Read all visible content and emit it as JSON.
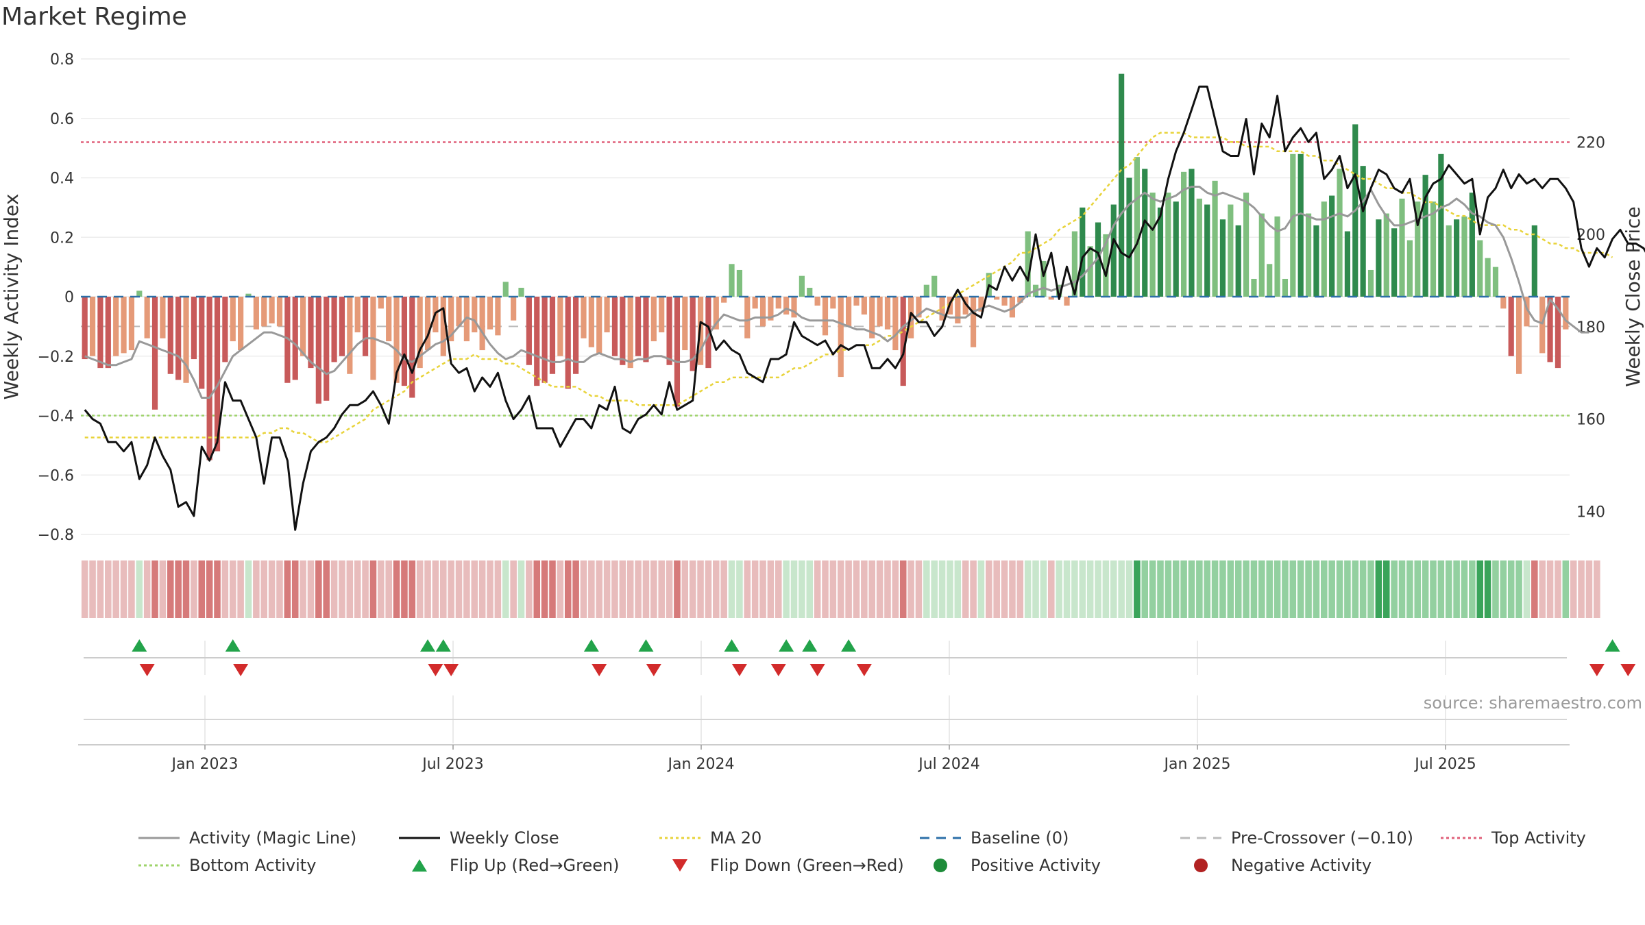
{
  "title": "Market Regime",
  "source": "source: sharemaestro.com",
  "colors": {
    "strong_pos": "#2f8a4d",
    "light_pos": "#7fbf7f",
    "strong_neg": "#c85a5a",
    "light_neg": "#e59a78",
    "magic_line": "#999999",
    "close": "#111111",
    "ma20": "#e8d33a",
    "baseline": "#2c6fa8",
    "pre_crossover": "#bbbbbb",
    "top": "#e0607a",
    "bottom": "#9ed36a",
    "flip_up": "#22a34a",
    "flip_down": "#d22b2b"
  },
  "legend": [
    {
      "label": "Activity (Magic Line)",
      "kind": "line",
      "color": "#999999",
      "dash": ""
    },
    {
      "label": "Weekly Close",
      "kind": "line",
      "color": "#111111",
      "dash": ""
    },
    {
      "label": "MA 20",
      "kind": "line",
      "color": "#e8d33a",
      "dash": "4,4"
    },
    {
      "label": "Baseline (0)",
      "kind": "line",
      "color": "#2c6fa8",
      "dash": "14,10"
    },
    {
      "label": "Pre-Crossover (−0.10)",
      "kind": "line",
      "color": "#bbbbbb",
      "dash": "14,10"
    },
    {
      "label": "Top Activity",
      "kind": "line",
      "color": "#e0607a",
      "dash": "4,4"
    },
    {
      "label": "Bottom Activity",
      "kind": "line",
      "color": "#9ed36a",
      "dash": "4,4"
    },
    {
      "label": "Flip Up (Red→Green)",
      "kind": "tri-up",
      "color": "#22a34a",
      "dash": ""
    },
    {
      "label": "Flip Down (Green→Red)",
      "kind": "tri-down",
      "color": "#d22b2b",
      "dash": ""
    },
    {
      "label": "Positive Activity",
      "kind": "dot",
      "color": "#1e8c3a",
      "dash": ""
    },
    {
      "label": "Negative Activity",
      "kind": "dot",
      "color": "#b22222",
      "dash": ""
    }
  ],
  "chart_data": {
    "type": "bar",
    "x_axis": {
      "ticks": [
        "Jan 2023",
        "Jul 2023",
        "Jan 2024",
        "Jul 2024",
        "Jan 2025",
        "Jul 2025"
      ],
      "range": [
        "2022-10",
        "2025-09"
      ]
    },
    "y_left": {
      "label": "Weekly Activity Index",
      "ticks": [
        "−0.8",
        "−0.6",
        "−0.4",
        "−0.2",
        "0",
        "0.2",
        "0.4",
        "0.6",
        "0.8"
      ],
      "ylim": [
        -0.8,
        0.8
      ]
    },
    "y_right": {
      "label": "Weekly Close Price",
      "ticks": [
        "140",
        "160",
        "180",
        "200",
        "220"
      ],
      "ylim": [
        135,
        238
      ]
    },
    "reference_lines": {
      "baseline": 0,
      "pre_crossover": -0.1,
      "top_activity": 0.52,
      "bottom_activity": -0.4
    },
    "series": [
      {
        "name": "Weekly Activity Index (bars)",
        "kind": "bar",
        "values": [
          -0.21,
          -0.2,
          -0.24,
          -0.24,
          -0.2,
          -0.19,
          -0.18,
          0.02,
          -0.14,
          -0.38,
          -0.14,
          -0.26,
          -0.28,
          -0.29,
          -0.21,
          -0.31,
          -0.55,
          -0.52,
          -0.22,
          -0.15,
          -0.18,
          0.01,
          -0.11,
          -0.1,
          -0.09,
          -0.1,
          -0.29,
          -0.28,
          -0.2,
          -0.24,
          -0.36,
          -0.35,
          -0.22,
          -0.2,
          -0.26,
          -0.12,
          -0.2,
          -0.28,
          -0.04,
          -0.15,
          -0.29,
          -0.3,
          -0.34,
          -0.24,
          -0.18,
          -0.12,
          -0.2,
          -0.15,
          -0.1,
          -0.15,
          -0.12,
          -0.18,
          -0.11,
          -0.13,
          0.05,
          -0.08,
          0.03,
          -0.23,
          -0.3,
          -0.29,
          -0.26,
          -0.2,
          -0.31,
          -0.26,
          -0.14,
          -0.17,
          -0.19,
          -0.12,
          -0.2,
          -0.23,
          -0.24,
          -0.2,
          -0.22,
          -0.15,
          -0.12,
          -0.23,
          -0.37,
          -0.18,
          -0.25,
          -0.23,
          -0.24,
          -0.11,
          -0.02,
          0.11,
          0.09,
          -0.14,
          -0.04,
          -0.1,
          -0.08,
          -0.04,
          -0.06,
          -0.07,
          0.07,
          0.03,
          -0.03,
          -0.13,
          -0.04,
          -0.27,
          -0.1,
          -0.03,
          -0.06,
          -0.14,
          -0.1,
          -0.11,
          -0.18,
          -0.3,
          -0.14,
          -0.07,
          0.04,
          0.07,
          -0.08,
          -0.06,
          -0.09,
          -0.06,
          -0.17,
          -0.05,
          0.08,
          -0.01,
          -0.03,
          -0.07,
          -0.02,
          0.22,
          0.04,
          0.12,
          -0.01,
          0.04,
          -0.03,
          0.22,
          0.3,
          0.17,
          0.25,
          0.21,
          0.31,
          0.75,
          0.4,
          0.47,
          0.43,
          0.35,
          0.3,
          0.35,
          0.32,
          0.42,
          0.43,
          0.33,
          0.31,
          0.39,
          0.26,
          0.31,
          0.24,
          0.35,
          0.06,
          0.28,
          0.11,
          0.27,
          0.06,
          0.48,
          0.48,
          0.28,
          0.24,
          0.32,
          0.34,
          0.43,
          0.22,
          0.58,
          0.44,
          0.09,
          0.26,
          0.28,
          0.23,
          0.33,
          0.19,
          0.32,
          0.41,
          0.32,
          0.48,
          0.24,
          0.26,
          0.27,
          0.35,
          0.19,
          0.13,
          0.1,
          -0.04,
          -0.2,
          -0.26,
          -0.1,
          0.24,
          -0.19,
          -0.22,
          -0.24,
          -0.11
        ]
      },
      {
        "name": "Activity (Magic Line)",
        "kind": "line",
        "values": [
          -0.2,
          -0.21,
          -0.22,
          -0.23,
          -0.23,
          -0.22,
          -0.21,
          -0.15,
          -0.16,
          -0.17,
          -0.18,
          -0.19,
          -0.2,
          -0.23,
          -0.28,
          -0.34,
          -0.34,
          -0.3,
          -0.25,
          -0.2,
          -0.18,
          -0.16,
          -0.14,
          -0.12,
          -0.12,
          -0.13,
          -0.14,
          -0.16,
          -0.19,
          -0.22,
          -0.24,
          -0.26,
          -0.25,
          -0.22,
          -0.19,
          -0.16,
          -0.14,
          -0.14,
          -0.15,
          -0.16,
          -0.18,
          -0.21,
          -0.22,
          -0.2,
          -0.18,
          -0.16,
          -0.15,
          -0.13,
          -0.1,
          -0.07,
          -0.08,
          -0.12,
          -0.16,
          -0.19,
          -0.21,
          -0.2,
          -0.18,
          -0.19,
          -0.2,
          -0.21,
          -0.22,
          -0.22,
          -0.21,
          -0.22,
          -0.22,
          -0.2,
          -0.19,
          -0.2,
          -0.21,
          -0.21,
          -0.22,
          -0.21,
          -0.21,
          -0.2,
          -0.2,
          -0.21,
          -0.22,
          -0.22,
          -0.21,
          -0.18,
          -0.13,
          -0.09,
          -0.06,
          -0.07,
          -0.08,
          -0.08,
          -0.07,
          -0.07,
          -0.07,
          -0.06,
          -0.04,
          -0.05,
          -0.07,
          -0.08,
          -0.08,
          -0.08,
          -0.08,
          -0.09,
          -0.1,
          -0.11,
          -0.11,
          -0.12,
          -0.13,
          -0.15,
          -0.13,
          -0.1,
          -0.08,
          -0.06,
          -0.04,
          -0.05,
          -0.06,
          -0.07,
          -0.07,
          -0.07,
          -0.05,
          -0.04,
          -0.03,
          -0.04,
          -0.05,
          -0.04,
          -0.02,
          0.01,
          0.02,
          0.03,
          0.02,
          0.03,
          0.04,
          0.05,
          0.07,
          0.1,
          0.13,
          0.18,
          0.24,
          0.28,
          0.31,
          0.33,
          0.35,
          0.33,
          0.32,
          0.33,
          0.34,
          0.36,
          0.37,
          0.37,
          0.35,
          0.34,
          0.35,
          0.34,
          0.33,
          0.32,
          0.3,
          0.27,
          0.24,
          0.22,
          0.23,
          0.27,
          0.28,
          0.27,
          0.26,
          0.26,
          0.27,
          0.28,
          0.27,
          0.29,
          0.32,
          0.36,
          0.31,
          0.27,
          0.24,
          0.24,
          0.25,
          0.26,
          0.27,
          0.28,
          0.3,
          0.31,
          0.33,
          0.31,
          0.28,
          0.27,
          0.25,
          0.24,
          0.2,
          0.13,
          0.05,
          -0.04,
          -0.08,
          -0.09,
          -0.01,
          -0.04,
          -0.08,
          -0.1,
          -0.12,
          -0.12
        ]
      },
      {
        "name": "Weekly Close",
        "kind": "line",
        "axis": "right",
        "values": [
          162,
          160,
          159,
          155,
          155,
          153,
          155,
          147,
          150,
          156,
          152,
          149,
          141,
          142,
          139,
          154,
          151,
          155,
          168,
          164,
          164,
          160,
          156,
          146,
          156,
          156,
          151,
          136,
          146,
          153,
          155,
          156,
          158,
          161,
          163,
          163,
          164,
          166,
          163,
          159,
          170,
          174,
          170,
          175,
          178,
          183,
          184,
          172,
          170,
          171,
          166,
          169,
          167,
          170,
          164,
          160,
          162,
          165,
          158,
          158,
          158,
          154,
          157,
          160,
          160,
          158,
          163,
          162,
          167,
          158,
          157,
          160,
          161,
          163,
          161,
          168,
          162,
          163,
          164,
          181,
          180,
          175,
          177,
          175,
          174,
          170,
          169,
          168,
          173,
          173,
          174,
          181,
          178,
          177,
          176,
          177,
          174,
          176,
          175,
          176,
          176,
          171,
          171,
          173,
          171,
          174,
          183,
          181,
          181,
          178,
          180,
          185,
          188,
          185,
          183,
          182,
          189,
          188,
          193,
          190,
          193,
          190,
          200,
          191,
          196,
          186,
          193,
          187,
          195,
          197,
          196,
          191,
          199,
          196,
          195,
          198,
          203,
          201,
          204,
          212,
          218,
          222,
          227,
          232,
          232,
          225,
          218,
          217,
          217,
          225,
          213,
          224,
          221,
          230,
          218,
          221,
          223,
          220,
          222,
          212,
          214,
          217,
          210,
          213,
          205,
          210,
          214,
          213,
          210,
          209,
          212,
          202,
          208,
          211,
          212,
          215,
          213,
          211,
          212,
          200,
          208,
          210,
          214,
          210,
          213,
          211,
          212,
          210,
          212,
          212,
          210,
          207,
          197,
          193,
          197,
          195,
          199,
          201,
          198,
          198,
          197,
          194
        ]
      },
      {
        "name": "MA 20",
        "kind": "line",
        "axis": "right",
        "values": [
          156,
          156,
          156,
          156,
          156,
          156,
          156,
          156,
          156,
          156,
          156,
          156,
          156,
          156,
          156,
          156,
          156,
          156,
          156,
          156,
          156,
          156,
          156,
          157,
          157,
          158,
          158,
          157,
          157,
          156,
          155,
          155,
          156,
          157,
          158,
          159,
          160,
          162,
          163,
          164,
          165,
          166,
          168,
          169,
          170,
          171,
          172,
          173,
          173,
          173,
          174,
          173,
          173,
          173,
          172,
          172,
          171,
          170,
          169,
          168,
          167,
          167,
          167,
          167,
          166,
          165,
          165,
          164,
          164,
          164,
          164,
          163,
          163,
          163,
          163,
          163,
          163,
          164,
          165,
          166,
          167,
          168,
          168,
          169,
          169,
          169,
          169,
          169,
          169,
          169,
          170,
          171,
          171,
          172,
          173,
          174,
          174,
          175,
          175,
          176,
          176,
          176,
          177,
          178,
          178,
          179,
          180,
          181,
          182,
          183,
          184,
          185,
          187,
          188,
          189,
          190,
          191,
          192,
          193,
          194,
          196,
          196,
          197,
          198,
          199,
          201,
          202,
          203,
          204,
          206,
          208,
          210,
          212,
          214,
          215,
          217,
          219,
          221,
          222,
          222,
          222,
          222,
          221,
          221,
          221,
          221,
          221,
          220,
          220,
          219,
          219,
          219,
          219,
          218,
          218,
          218,
          218,
          217,
          217,
          216,
          216,
          215,
          214,
          213,
          212,
          212,
          211,
          210,
          210,
          209,
          209,
          208,
          207,
          207,
          206,
          205,
          204,
          204,
          203,
          202,
          202,
          202,
          202,
          201,
          201,
          200,
          200,
          199,
          198,
          198,
          197,
          197,
          196,
          196,
          196,
          196,
          195
        ]
      }
    ],
    "regime_strip": [
      "ln",
      "ln",
      "ln",
      "ln",
      "ln",
      "ln",
      "ln",
      "lp",
      "ln",
      "sn",
      "ln",
      "sn",
      "sn",
      "sn",
      "ln",
      "sn",
      "sn",
      "sn",
      "ln",
      "ln",
      "ln",
      "lp",
      "ln",
      "ln",
      "ln",
      "ln",
      "sn",
      "sn",
      "ln",
      "ln",
      "sn",
      "sn",
      "ln",
      "ln",
      "ln",
      "ln",
      "ln",
      "sn",
      "ln",
      "ln",
      "sn",
      "sn",
      "sn",
      "ln",
      "ln",
      "ln",
      "ln",
      "ln",
      "ln",
      "ln",
      "ln",
      "ln",
      "ln",
      "ln",
      "lp",
      "ln",
      "lp",
      "ln",
      "sn",
      "sn",
      "sn",
      "ln",
      "sn",
      "sn",
      "ln",
      "ln",
      "ln",
      "ln",
      "ln",
      "ln",
      "ln",
      "ln",
      "ln",
      "ln",
      "ln",
      "ln",
      "sn",
      "ln",
      "ln",
      "ln",
      "ln",
      "ln",
      "ln",
      "lp",
      "lp",
      "ln",
      "ln",
      "ln",
      "ln",
      "ln",
      "lp",
      "lp",
      "lp",
      "lp",
      "ln",
      "ln",
      "ln",
      "ln",
      "ln",
      "ln",
      "ln",
      "ln",
      "ln",
      "ln",
      "ln",
      "sn",
      "ln",
      "ln",
      "lp",
      "lp",
      "lp",
      "lp",
      "lp",
      "ln",
      "ln",
      "lp",
      "ln",
      "ln",
      "ln",
      "ln",
      "ln",
      "lp",
      "lp",
      "lp",
      "ln",
      "lp",
      "lp",
      "lp",
      "lp",
      "lp",
      "lp",
      "lp",
      "lp",
      "lp",
      "lp",
      "sp",
      "mp",
      "mp",
      "mp",
      "mp",
      "mp",
      "mp",
      "mp",
      "mp",
      "mp",
      "mp",
      "mp",
      "mp",
      "mp",
      "mp",
      "mp",
      "mp",
      "mp",
      "mp",
      "mp",
      "mp",
      "mp",
      "mp",
      "mp",
      "mp",
      "mp",
      "mp",
      "mp",
      "mp",
      "mp",
      "mp",
      "sp",
      "sp",
      "mp",
      "mp",
      "mp",
      "mp",
      "mp",
      "mp",
      "mp",
      "mp",
      "mp",
      "mp",
      "mp",
      "sp",
      "sp",
      "mp",
      "mp",
      "mp",
      "mp",
      "lp",
      "sn",
      "ln",
      "ln",
      "ln",
      "mp",
      "ln",
      "ln",
      "ln",
      "ln"
    ],
    "flip_up_weeks": [
      7,
      19,
      44,
      46,
      65,
      72,
      83,
      90,
      93,
      98,
      196
    ],
    "flip_down_weeks": [
      8,
      20,
      45,
      47,
      66,
      73,
      84,
      89,
      94,
      100,
      194,
      198
    ]
  }
}
